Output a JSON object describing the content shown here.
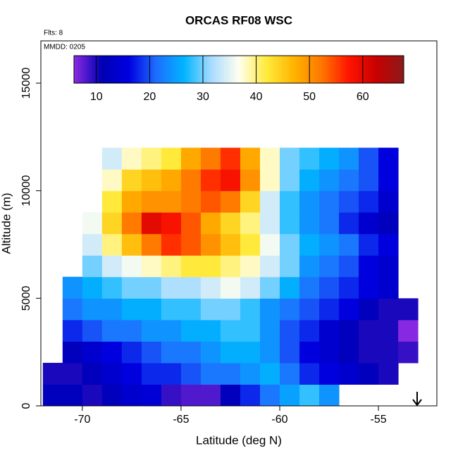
{
  "chart_data": {
    "type": "heatmap",
    "title": "ORCAS RF08 WSC",
    "subtitle": "Flts: 8",
    "annotation": "MMDD: 0205",
    "x_label": "Latitude (deg N)",
    "y_label": "Altitude (m)",
    "xlim": [
      -72.1,
      -52.04
    ],
    "xticks": [
      -70,
      -65,
      -60,
      -55
    ],
    "ylim": [
      0,
      16966
    ],
    "yticks": [
      0,
      5000,
      10000,
      15000
    ],
    "zlim": [
      5.8,
      67.7
    ],
    "zticks": [
      10,
      20,
      30,
      40,
      50,
      60
    ],
    "colormap": [
      "#8b2be2",
      "#0000b4",
      "#0000e0",
      "#1e6eff",
      "#00b4ff",
      "#a8dcff",
      "#fffff0",
      "#ffeb3c",
      "#ffb400",
      "#ff7800",
      "#ff1400",
      "#c80000",
      "#8b1a1a"
    ],
    "x": [
      -71.5,
      -70.5,
      -69.5,
      -68.5,
      -67.5,
      -66.5,
      -65.5,
      -64.5,
      -63.5,
      -62.5,
      -61.5,
      -60.5,
      -59.5,
      -58.5,
      -57.5,
      -56.5,
      -55.5,
      -54.5,
      -53.5
    ],
    "y": [
      500,
      1500,
      2500,
      3500,
      4500,
      5500,
      6500,
      7500,
      8500,
      9500,
      10500,
      11500
    ],
    "z": [
      [
        12,
        12,
        10,
        12,
        14,
        15,
        9,
        8,
        8,
        12,
        18,
        22,
        25,
        28,
        24,
        null,
        null,
        null,
        null
      ],
      [
        10,
        10,
        12,
        14,
        16,
        18,
        18,
        20,
        22,
        22,
        24,
        26,
        22,
        18,
        16,
        14,
        12,
        10,
        null
      ],
      [
        null,
        12,
        14,
        16,
        18,
        20,
        22,
        22,
        24,
        26,
        26,
        24,
        20,
        16,
        14,
        12,
        10,
        10,
        9
      ],
      [
        null,
        18,
        20,
        22,
        22,
        24,
        24,
        26,
        26,
        28,
        28,
        24,
        20,
        18,
        14,
        12,
        10,
        10,
        6
      ],
      [
        null,
        22,
        24,
        24,
        26,
        26,
        28,
        28,
        30,
        30,
        28,
        24,
        22,
        20,
        18,
        16,
        12,
        10,
        10
      ],
      [
        null,
        24,
        26,
        28,
        30,
        30,
        32,
        32,
        34,
        36,
        34,
        30,
        26,
        22,
        20,
        18,
        16,
        14,
        null
      ],
      [
        null,
        null,
        30,
        34,
        36,
        38,
        40,
        42,
        42,
        40,
        38,
        34,
        30,
        24,
        22,
        20,
        16,
        14,
        null
      ],
      [
        null,
        null,
        34,
        40,
        46,
        52,
        56,
        54,
        50,
        46,
        42,
        36,
        30,
        26,
        24,
        22,
        18,
        16,
        null
      ],
      [
        null,
        null,
        36,
        44,
        52,
        60,
        58,
        54,
        48,
        44,
        40,
        34,
        28,
        24,
        22,
        18,
        14,
        12,
        null
      ],
      [
        null,
        null,
        null,
        42,
        48,
        50,
        50,
        52,
        54,
        52,
        44,
        34,
        28,
        24,
        22,
        20,
        18,
        14,
        null
      ],
      [
        null,
        null,
        null,
        38,
        44,
        46,
        48,
        52,
        56,
        58,
        50,
        38,
        30,
        26,
        24,
        22,
        20,
        16,
        null
      ],
      [
        null,
        null,
        null,
        34,
        38,
        40,
        42,
        48,
        52,
        56,
        48,
        38,
        30,
        28,
        26,
        24,
        20,
        16,
        null
      ]
    ]
  }
}
